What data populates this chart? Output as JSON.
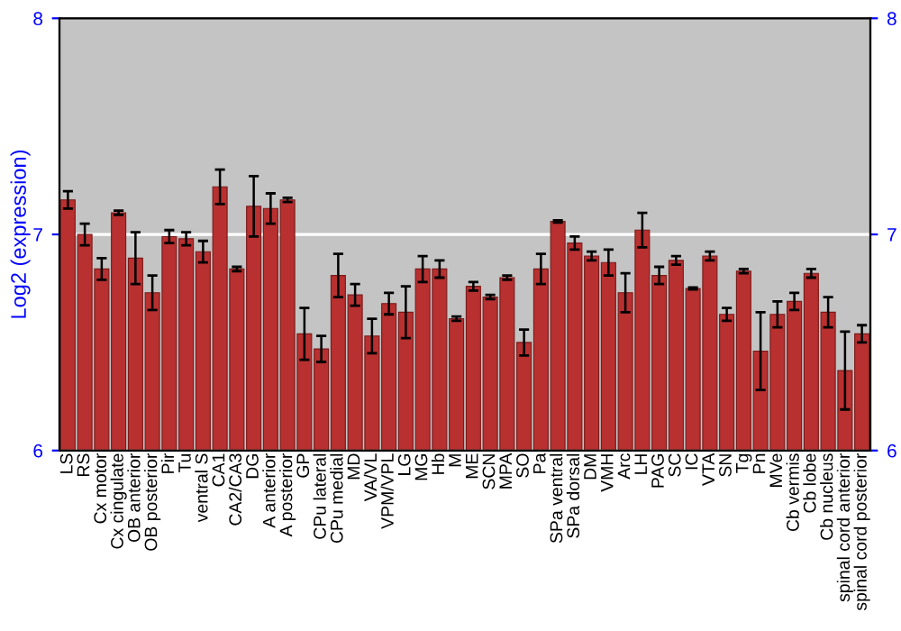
{
  "chart_data": {
    "type": "bar",
    "ylabel": "Log2 (expression)",
    "categories": [
      "LS",
      "RS",
      "Cx motor",
      "Cx cingulate",
      "OB anterior",
      "OB posterior",
      "Pir",
      "Tu",
      "ventral S",
      "CA1",
      "CA2/CA3",
      "DG",
      "A anterior",
      "A posterior",
      "GP",
      "CPu lateral",
      "CPu medial",
      "MD",
      "VA/VL",
      "VPM/VPL",
      "LG",
      "MG",
      "Hb",
      "M",
      "ME",
      "SCN",
      "MPA",
      "SO",
      "Pa",
      "SPa ventral",
      "SPa dorsal",
      "DM",
      "VMH",
      "Arc",
      "LH",
      "PAG",
      "SC",
      "IC",
      "VTA",
      "SN",
      "Tg",
      "Pn",
      "MVe",
      "Cb vermis",
      "Cb lobe",
      "Cb nucleus",
      "spinal cord anterior",
      "spinal cord posterior"
    ],
    "values": [
      7.16,
      7.0,
      6.84,
      7.1,
      6.89,
      6.73,
      6.99,
      6.98,
      6.92,
      7.22,
      6.84,
      7.13,
      7.12,
      7.16,
      6.54,
      6.47,
      6.81,
      6.72,
      6.53,
      6.68,
      6.64,
      6.84,
      6.84,
      6.61,
      6.76,
      6.71,
      6.8,
      6.5,
      6.84,
      7.06,
      6.96,
      6.9,
      6.87,
      6.73,
      7.02,
      6.81,
      6.88,
      6.75,
      6.9,
      6.63,
      6.83,
      6.46,
      6.63,
      6.69,
      6.82,
      6.64,
      6.37,
      6.54
    ],
    "errors": [
      0.04,
      0.05,
      0.05,
      0.01,
      0.12,
      0.08,
      0.03,
      0.03,
      0.05,
      0.08,
      0.01,
      0.14,
      0.07,
      0.01,
      0.12,
      0.06,
      0.1,
      0.05,
      0.08,
      0.05,
      0.12,
      0.06,
      0.04,
      0.01,
      0.02,
      0.01,
      0.01,
      0.06,
      0.07,
      0.005,
      0.03,
      0.02,
      0.06,
      0.09,
      0.08,
      0.04,
      0.02,
      0.005,
      0.02,
      0.03,
      0.01,
      0.18,
      0.06,
      0.04,
      0.02,
      0.07,
      0.18,
      0.04
    ],
    "color": "#b83030",
    "ylim": [
      6,
      8
    ],
    "yticks": [
      6,
      7,
      8
    ],
    "y2lim": [
      6,
      8
    ],
    "y2ticks": [
      6,
      7,
      8
    ],
    "grid": "y"
  }
}
